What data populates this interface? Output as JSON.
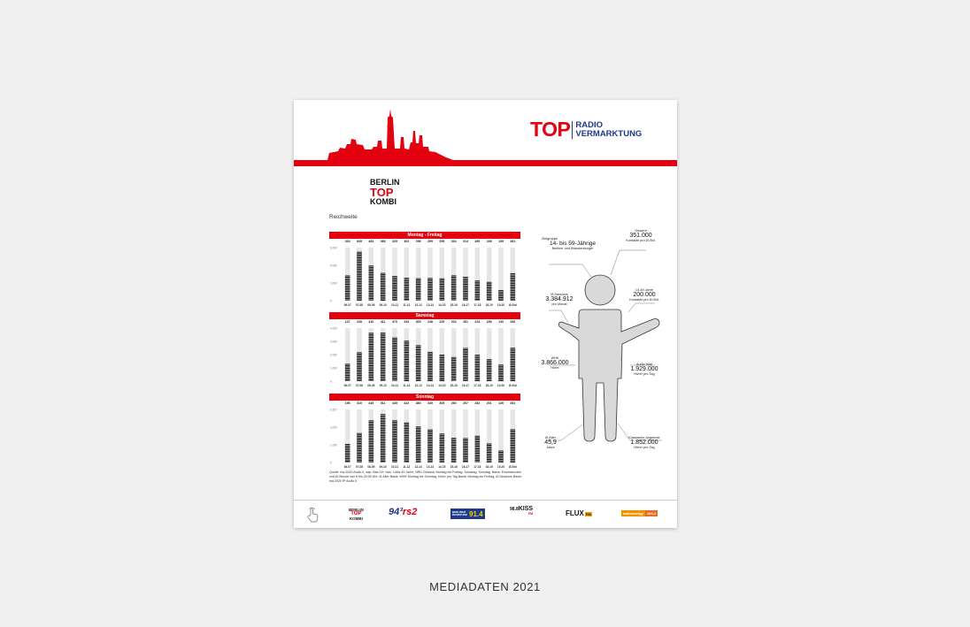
{
  "header": {
    "top_label": "TOP",
    "radio_label": "RADIO",
    "vermarktung_label": "VERMARKTUNG"
  },
  "brand": {
    "line1": "BERLIN",
    "line2": "TOP",
    "line3": "KOMBI"
  },
  "section_title": "Reichweite",
  "chart_data": [
    {
      "type": "bar",
      "title": "Montag - Freitag",
      "categories": [
        "06-07",
        "07-08",
        "08-09",
        "09-10",
        "10-11",
        "11-12",
        "12-13",
        "13-14",
        "14-15",
        "15-16",
        "16-17",
        "17-18",
        "18-19",
        "19-20",
        "Ø-Std"
      ],
      "values": [
        333,
        645,
        463,
        366,
        325,
        302,
        296,
        299,
        295,
        334,
        314,
        265,
        248,
        139,
        361
      ],
      "value_labels": [
        "333",
        "645",
        "463",
        "366",
        "325",
        "302",
        "296",
        "299",
        "295",
        "334",
        "314",
        "265",
        "248",
        "139",
        "361"
      ],
      "y_ticks": [
        "6.000",
        "4.000",
        "2.000",
        "0"
      ],
      "ylim": [
        0,
        700
      ]
    },
    {
      "type": "bar",
      "title": "Samstag",
      "categories": [
        "06-07",
        "07-08",
        "08-09",
        "09-10",
        "10-11",
        "11-12",
        "12-13",
        "13-14",
        "14-15",
        "15-16",
        "16-17",
        "17-18",
        "18-19",
        "19-20",
        "Ø-Std"
      ],
      "values": [
        147,
        245,
        410,
        411,
        370,
        343,
        305,
        248,
        225,
        204,
        281,
        224,
        186,
        140,
        283
      ],
      "value_labels": [
        "147",
        "245",
        "410",
        "411",
        "370",
        "343",
        "305",
        "248",
        "225",
        "204",
        "281",
        "224",
        "186",
        "140",
        "283"
      ],
      "y_ticks": [
        "4.000",
        "3.000",
        "2.000",
        "1.000",
        "0"
      ],
      "ylim": [
        0,
        450
      ]
    },
    {
      "type": "bar",
      "title": "Sonntag",
      "categories": [
        "06-07",
        "07-08",
        "08-09",
        "09-10",
        "10-11",
        "11-12",
        "12-13",
        "13-14",
        "14-15",
        "15-16",
        "16-17",
        "17-18",
        "18-19",
        "19-20",
        "Ø-Std"
      ],
      "values": [
        196,
        310,
        445,
        511,
        445,
        422,
        380,
        349,
        305,
        260,
        257,
        282,
        201,
        126,
        351
      ],
      "value_labels": [
        "196",
        "310",
        "445",
        "511",
        "445",
        "422",
        "380",
        "349",
        "305",
        "260",
        "257",
        "282",
        "201",
        "126",
        "351"
      ],
      "y_ticks": [
        "5.507",
        "3.000",
        "1.000",
        "0"
      ],
      "ylim": [
        0,
        560
      ]
    }
  ],
  "source_text": "Quelle: ma 2020 Audio II, dap: Bas 14+ bzw. 14bis 49 Jahre, BRD Gesamt, Montag bis Freitag, Samstag, Sonntag. Basis: Einzelstunden und Ø-Stunde von 6 bis 20:00 Uhr, Ø-Alter Basis: WHK Montag bis Sonntag, Hörer pro Tag Basis: Montag bis Freitag, Ø-Sessions Basis: ma 2020 IP Audio II",
  "figure_labels": {
    "zielgruppe": {
      "title": "Zielgruppe",
      "value": "14- bis 59-Jährige",
      "sub": "Berliner und Brandenburger"
    },
    "gesamt": {
      "title": "Gesamt",
      "value": "351.000",
      "sub": "Kontakte pro Ø-Std."
    },
    "sessions": {
      "title": "Ø-Sessions",
      "value": "3.384.912",
      "sub": "pro Monat"
    },
    "age1449": {
      "title": "14-49 Jahre",
      "value": "200.000",
      "sub": "Kontakte pro Ø-Std."
    },
    "whk": {
      "title": "WHK",
      "value": "3.866.000",
      "sub": "Hörer"
    },
    "audio_total": {
      "title": "Audio total",
      "value": "1.929.000",
      "sub": "Hörer pro Tag"
    },
    "alter": {
      "title": "Ø-Alter",
      "value": "45,9",
      "sub": "Jahre"
    },
    "klassisch": {
      "title": "Klassische Angebote",
      "value": "1.852.000",
      "sub": "Hörer pro Tag"
    }
  },
  "footer_logos": {
    "btk": [
      "BERLIN",
      "TOP",
      "KOMBI"
    ],
    "rs2_num": "94³",
    "rs2_name": "rs2",
    "berliner_rundfunk": [
      "BERLINER",
      "RUNDFUNK"
    ],
    "berliner_num": "91.4",
    "kiss_num": "98.8",
    "kiss_name": "KISS",
    "kiss_fm": "FM",
    "flux": "FLUX",
    "flux_fm": "FM",
    "energy_name": "radioenergy",
    "energy_freq": "103,4"
  },
  "caption": "MEDIADATEN 2021"
}
